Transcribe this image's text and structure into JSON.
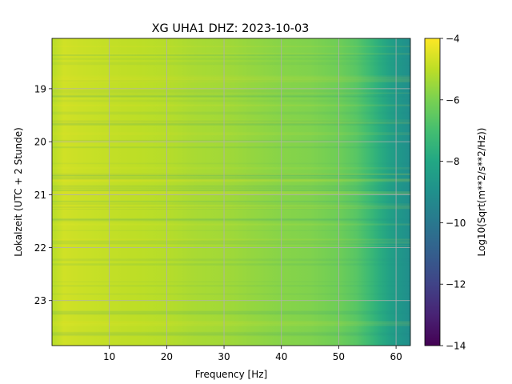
{
  "chart_data": {
    "type": "heatmap",
    "title": "XG UHA1  DHZ: 2023-10-03",
    "xlabel": "Frequency [Hz]",
    "ylabel": "Lokalzeit (UTC + 2 Stunde)",
    "xlim": [
      0,
      62.5
    ],
    "ylim": [
      23.85,
      18.05
    ],
    "x_ticks": [
      10,
      20,
      30,
      40,
      50,
      60
    ],
    "x_tick_labels": [
      "10",
      "20",
      "30",
      "40",
      "50",
      "60"
    ],
    "y_ticks": [
      19,
      20,
      21,
      22,
      23
    ],
    "y_tick_labels": [
      "19",
      "20",
      "21",
      "22",
      "23"
    ],
    "grid": true,
    "colormap": "viridis",
    "colorbar": {
      "label": "Log10(Sqrt(m**2/s**2/Hz))",
      "range": [
        -14,
        -4
      ],
      "ticks": [
        -4,
        -6,
        -8,
        -10,
        -12,
        -14
      ],
      "tick_labels": [
        "−4",
        "−6",
        "−8",
        "−10",
        "−12",
        "−14"
      ]
    },
    "spectrum_profile": {
      "frequency_hz": [
        0,
        2,
        5,
        10,
        15,
        20,
        25,
        30,
        35,
        40,
        45,
        50,
        53,
        55,
        57,
        59,
        61,
        62.5
      ],
      "log10_amplitude": [
        -5.1,
        -4.7,
        -4.8,
        -4.9,
        -5.0,
        -5.1,
        -5.3,
        -5.4,
        -5.6,
        -5.8,
        -5.9,
        -6.2,
        -6.6,
        -7.1,
        -7.7,
        -8.3,
        -8.8,
        -9.1
      ]
    }
  }
}
